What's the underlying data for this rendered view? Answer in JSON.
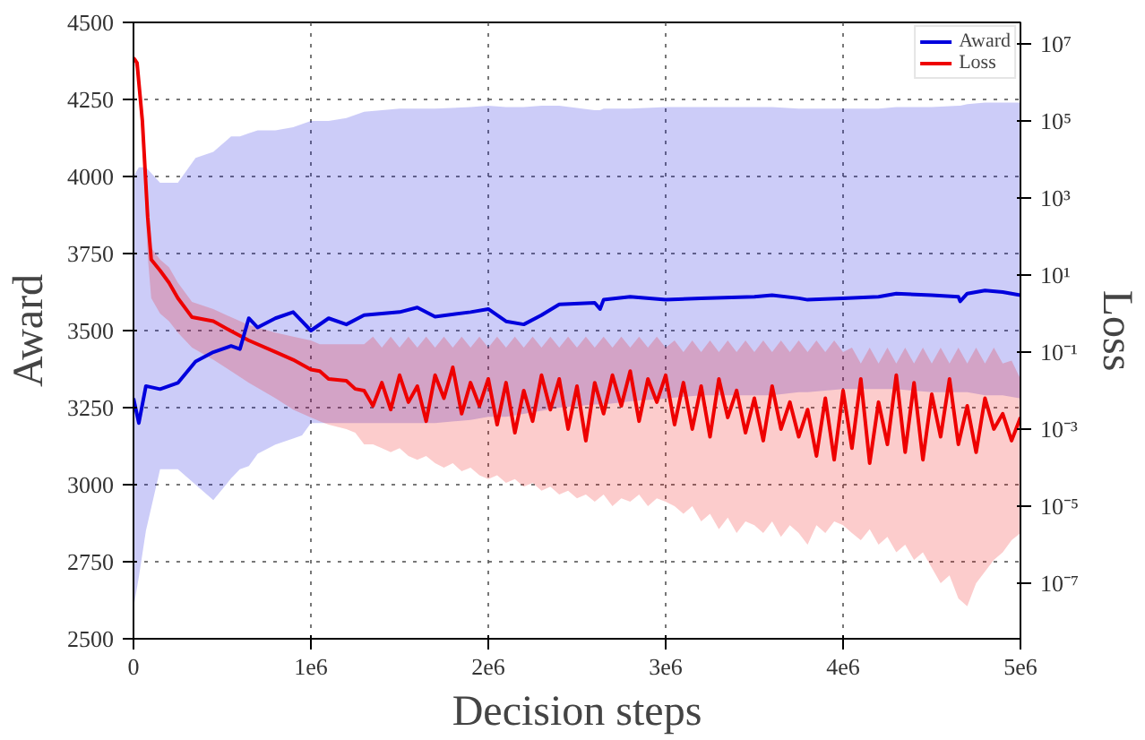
{
  "chart_data": {
    "type": "line",
    "xlabel": "Decision steps",
    "ylabel": "Award",
    "y2label": "Loss",
    "xlim": [
      0,
      5000000
    ],
    "xticks": [
      0,
      {
        "value": 1000000,
        "label": "1e6"
      },
      {
        "value": 2000000,
        "label": "2e6"
      },
      {
        "value": 3000000,
        "label": "3e6"
      },
      {
        "value": 4000000,
        "label": "4e6"
      },
      {
        "value": 5000000,
        "label": "5e6"
      }
    ],
    "ylim": [
      2500,
      4500
    ],
    "yticks": [
      2500,
      2750,
      3000,
      3250,
      3500,
      3750,
      4000,
      4250,
      4500
    ],
    "y2lim": [
      3.6e-09,
      36000000.0
    ],
    "y2ticks": [
      {
        "value": 1e-07,
        "label": "10⁻⁷"
      },
      {
        "value": 1e-05,
        "label": "10⁻⁵"
      },
      {
        "value": 0.001,
        "label": "10⁻³"
      },
      {
        "value": 0.1,
        "label": "10⁻¹"
      },
      {
        "value": 10,
        "label": "10¹"
      },
      {
        "value": 1000,
        "label": "10³"
      },
      {
        "value": 100000,
        "label": "10⁵"
      },
      {
        "value": 10000000,
        "label": "10⁷"
      }
    ],
    "log": "y2",
    "grid": true,
    "legend": "top right",
    "series": [
      {
        "name": "Award",
        "color": "#0000dd",
        "x": [
          0,
          30000,
          70000,
          150000,
          250000,
          350000,
          450000,
          550000,
          600000,
          650000,
          700000,
          800000,
          900000,
          950000,
          1000000,
          1100000,
          1200000,
          1300000,
          1500000,
          1600000,
          1700000,
          1900000,
          2000000,
          2100000,
          2200000,
          2300000,
          2400000,
          2600000,
          2630000,
          2650000,
          2800000,
          3000000,
          3200000,
          3500000,
          3600000,
          3750000,
          3800000,
          4000000,
          4200000,
          4300000,
          4500000,
          4650000,
          4660000,
          4700000,
          4800000,
          4900000,
          5000000
        ],
        "values": [
          3280,
          3200,
          3320,
          3310,
          3330,
          3400,
          3430,
          3450,
          3440,
          3540,
          3510,
          3540,
          3560,
          3530,
          3500,
          3540,
          3520,
          3550,
          3560,
          3575,
          3545,
          3560,
          3570,
          3530,
          3520,
          3550,
          3585,
          3590,
          3570,
          3600,
          3610,
          3600,
          3605,
          3610,
          3615,
          3605,
          3600,
          3605,
          3610,
          3620,
          3615,
          3610,
          3595,
          3620,
          3630,
          3625,
          3615
        ],
        "upper": [
          4000,
          4030,
          4030,
          3980,
          3980,
          4060,
          4080,
          4130,
          4130,
          4140,
          4150,
          4150,
          4160,
          4170,
          4180,
          4180,
          4190,
          4210,
          4220,
          4220,
          4220,
          4225,
          4230,
          4225,
          4225,
          4230,
          4230,
          4215,
          4215,
          4220,
          4220,
          4225,
          4225,
          4225,
          4225,
          4220,
          4220,
          4220,
          4220,
          4225,
          4225,
          4230,
          4230,
          4235,
          4240,
          4240,
          4240
        ],
        "lower": [
          2600,
          2700,
          2850,
          3050,
          3050,
          3000,
          2950,
          3020,
          3050,
          3060,
          3100,
          3130,
          3150,
          3160,
          3200,
          3200,
          3200,
          3200,
          3200,
          3200,
          3200,
          3210,
          3220,
          3220,
          3230,
          3240,
          3250,
          3260,
          3260,
          3260,
          3270,
          3280,
          3290,
          3290,
          3290,
          3300,
          3300,
          3310,
          3310,
          3310,
          3300,
          3300,
          3300,
          3300,
          3290,
          3290,
          3280
        ]
      },
      {
        "name": "Loss",
        "color": "#ee0000",
        "axis": "y2",
        "x": [
          0,
          20000,
          50000,
          80000,
          100000,
          150000,
          200000,
          250000,
          330000,
          450000,
          550000,
          650000,
          800000,
          900000,
          1000000,
          1050000,
          1100000,
          1200000,
          1250000,
          1300000,
          1350000,
          1400000,
          1450000,
          1500000,
          1550000,
          1600000,
          1650000,
          1700000,
          1750000,
          1800000,
          1850000,
          1900000,
          1950000,
          2000000,
          2050000,
          2100000,
          2150000,
          2200000,
          2250000,
          2300000,
          2350000,
          2400000,
          2450000,
          2500000,
          2550000,
          2600000,
          2650000,
          2700000,
          2750000,
          2800000,
          2850000,
          2900000,
          2950000,
          3000000,
          3050000,
          3100000,
          3150000,
          3200000,
          3250000,
          3300000,
          3350000,
          3400000,
          3450000,
          3500000,
          3550000,
          3600000,
          3650000,
          3700000,
          3750000,
          3800000,
          3850000,
          3900000,
          3950000,
          4000000,
          4050000,
          4100000,
          4150000,
          4200000,
          4250000,
          4300000,
          4350000,
          4400000,
          4450000,
          4500000,
          4550000,
          4600000,
          4650000,
          4700000,
          4750000,
          4800000,
          4850000,
          4900000,
          4950000,
          5000000
        ],
        "values": [
          4300000.0,
          3200000.0,
          100000.0,
          320,
          25,
          13,
          6.3,
          2.5,
          0.8,
          0.63,
          0.35,
          0.2,
          0.1,
          0.063,
          0.035,
          0.032,
          0.02,
          0.018,
          0.011,
          0.01,
          0.004,
          0.016,
          0.0032,
          0.025,
          0.005,
          0.013,
          0.0016,
          0.025,
          0.0063,
          0.04,
          0.0025,
          0.016,
          0.004,
          0.02,
          0.0013,
          0.016,
          0.0008,
          0.01,
          0.0016,
          0.025,
          0.0032,
          0.02,
          0.001,
          0.013,
          0.0005,
          0.016,
          0.0025,
          0.025,
          0.004,
          0.032,
          0.0016,
          0.02,
          0.005,
          0.025,
          0.0013,
          0.016,
          0.001,
          0.013,
          0.00063,
          0.02,
          0.002,
          0.01,
          0.0008,
          0.0063,
          0.0005,
          0.013,
          0.001,
          0.005,
          0.00063,
          0.0032,
          0.0002,
          0.0063,
          0.00016,
          0.01,
          0.00032,
          0.02,
          0.00013,
          0.005,
          0.0004,
          0.025,
          0.00025,
          0.016,
          0.00016,
          0.008,
          0.00063,
          0.02,
          0.0004,
          0.004,
          0.00025,
          0.0063,
          0.001,
          0.0025,
          0.0005,
          0.002
        ],
        "upper": [
          5000000.0,
          4000000.0,
          200000.0,
          630,
          50,
          25,
          16,
          6.3,
          2,
          1.3,
          0.8,
          0.5,
          0.32,
          0.25,
          0.2,
          0.16,
          0.16,
          0.16,
          0.16,
          0.16,
          0.25,
          0.13,
          0.25,
          0.13,
          0.25,
          0.13,
          0.25,
          0.13,
          0.25,
          0.13,
          0.25,
          0.13,
          0.25,
          0.13,
          0.25,
          0.13,
          0.25,
          0.13,
          0.25,
          0.13,
          0.25,
          0.13,
          0.25,
          0.13,
          0.25,
          0.13,
          0.25,
          0.13,
          0.25,
          0.13,
          0.25,
          0.13,
          0.25,
          0.13,
          0.2,
          0.1,
          0.2,
          0.1,
          0.2,
          0.1,
          0.2,
          0.1,
          0.2,
          0.1,
          0.2,
          0.1,
          0.2,
          0.1,
          0.2,
          0.1,
          0.2,
          0.1,
          0.2,
          0.1,
          0.13,
          0.05,
          0.13,
          0.05,
          0.13,
          0.05,
          0.13,
          0.05,
          0.13,
          0.05,
          0.13,
          0.05,
          0.13,
          0.05,
          0.13,
          0.05,
          0.13,
          0.05,
          0.06,
          0.02
        ],
        "lower": [
          3200000.0,
          2000000.0,
          32000.0,
          32,
          2.5,
          1,
          0.63,
          0.32,
          0.13,
          0.063,
          0.032,
          0.016,
          0.0063,
          0.0032,
          0.002,
          0.0016,
          0.0013,
          0.001,
          0.0008,
          0.0004,
          0.0004,
          0.00032,
          0.00025,
          0.00032,
          0.0002,
          0.00016,
          0.0002,
          0.00013,
          0.0001,
          0.00013,
          8e-05,
          0.0001,
          6.3e-05,
          5e-05,
          6.3e-05,
          4e-05,
          5e-05,
          3.2e-05,
          4e-05,
          2.5e-05,
          3.2e-05,
          2e-05,
          2.5e-05,
          1.6e-05,
          2e-05,
          1.3e-05,
          2e-05,
          1e-05,
          1.6e-05,
          1.3e-05,
          2e-05,
          1e-05,
          1.6e-05,
          1.3e-05,
          1e-05,
          6.3e-06,
          1e-05,
          4e-06,
          6.3e-06,
          2.5e-06,
          5e-06,
          2e-06,
          4e-06,
          3.2e-06,
          2e-06,
          4e-06,
          1.6e-06,
          3.2e-06,
          2e-06,
          1e-06,
          3.2e-06,
          2e-06,
          4e-06,
          3.2e-06,
          2e-06,
          1.3e-06,
          2.5e-06,
          1e-06,
          1.6e-06,
          6.3e-07,
          1e-06,
          4e-07,
          6.3e-07,
          2.5e-07,
          1e-07,
          1.6e-07,
          4e-08,
          2.5e-08,
          1e-07,
          2e-07,
          4e-07,
          6.3e-07,
          1.3e-06,
          2e-06
        ]
      }
    ]
  }
}
